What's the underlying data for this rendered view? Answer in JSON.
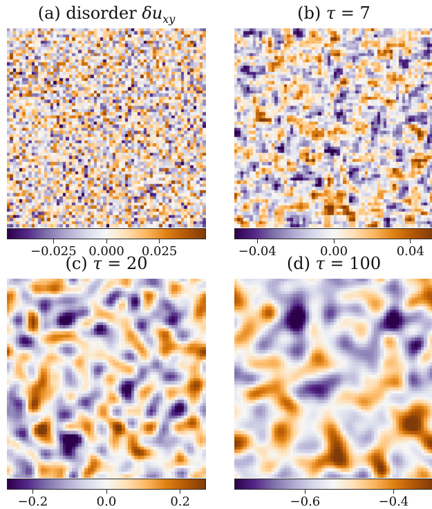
{
  "chart_data": [
    {
      "type": "heatmap",
      "panel": "a",
      "title_prefix": "(a) disorder ",
      "title_symbol": "δu",
      "title_sub": "xy",
      "colormap": "PuOr_r (purple = low, white = mid, orange/brown = high)",
      "texture": "uncorrelated pixel noise",
      "grid_cells": 64,
      "colorbar": {
        "vmin": -0.047,
        "vmax": 0.047,
        "ticks": [
          -0.025,
          0.0,
          0.025
        ],
        "tick_labels": [
          "−0.025",
          "0.000",
          "0.025"
        ]
      },
      "seed": 11,
      "smooth_passes": 0
    },
    {
      "type": "heatmap",
      "panel": "b",
      "title_prefix": "(b) ",
      "title_symbol": "τ",
      "title_suffix": " = 7",
      "colormap": "PuOr_r",
      "texture": "weakly correlated noise",
      "grid_cells": 64,
      "colorbar": {
        "vmin": -0.052,
        "vmax": 0.052,
        "ticks": [
          -0.04,
          0.0,
          0.04
        ],
        "tick_labels": [
          "−0.04",
          "0.00",
          "0.04"
        ]
      },
      "seed": 23,
      "smooth_passes": 1
    },
    {
      "type": "heatmap",
      "panel": "c",
      "title_prefix": "(c) ",
      "title_symbol": "τ",
      "title_suffix": " = 20",
      "colormap": "PuOr_r",
      "texture": "smooth blobs",
      "grid_cells": 64,
      "colorbar": {
        "vmin": -0.27,
        "vmax": 0.27,
        "ticks": [
          -0.2,
          0.0,
          0.2
        ],
        "tick_labels": [
          "−0.2",
          "0.0",
          "0.2"
        ]
      },
      "seed": 37,
      "smooth_passes": 4
    },
    {
      "type": "heatmap",
      "panel": "d",
      "title_prefix": "(d) ",
      "title_symbol": "τ",
      "title_suffix": " = 100",
      "colormap": "PuOr_r",
      "texture": "larger smooth domains",
      "grid_cells": 64,
      "colorbar": {
        "vmin": -0.76,
        "vmax": -0.31,
        "ticks": [
          -0.6,
          -0.4
        ],
        "tick_labels": [
          "−0.6",
          "−0.4"
        ]
      },
      "seed": 53,
      "smooth_passes": 7
    }
  ]
}
